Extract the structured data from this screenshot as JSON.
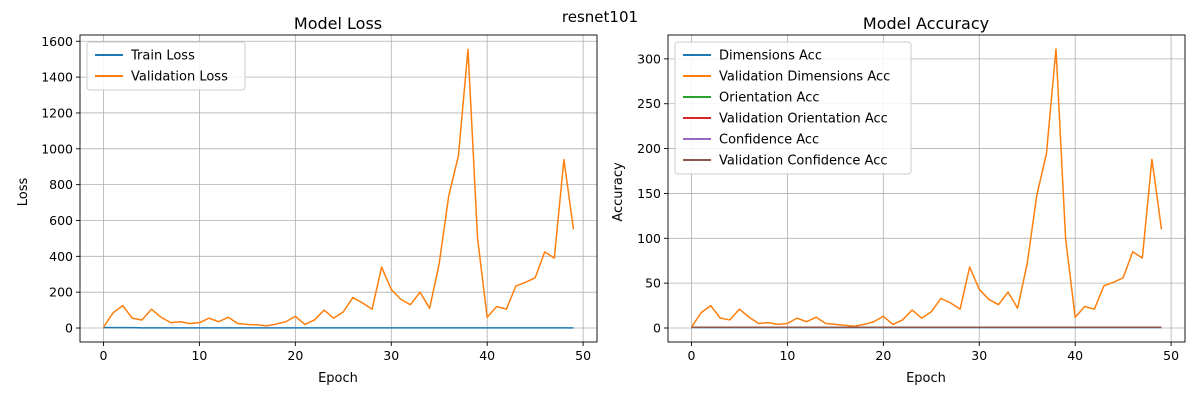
{
  "figure": {
    "suptitle": "resnet101"
  },
  "chart_data": [
    {
      "type": "line",
      "title": "Model Loss",
      "xlabel": "Epoch",
      "ylabel": "Loss",
      "xlim": [
        -2.45,
        51.45
      ],
      "ylim": [
        -78,
        1635
      ],
      "xticks": [
        0,
        10,
        20,
        30,
        40,
        50
      ],
      "yticks": [
        0,
        200,
        400,
        600,
        800,
        1000,
        1200,
        1400,
        1600
      ],
      "grid": true,
      "legend_position": "top-left",
      "series": [
        {
          "name": "Train Loss",
          "color": "#1f77b4",
          "x": [
            0,
            1,
            2,
            3,
            4,
            5,
            6,
            7,
            8,
            9,
            10,
            11,
            12,
            13,
            14,
            15,
            16,
            17,
            18,
            19,
            20,
            21,
            22,
            23,
            24,
            25,
            26,
            27,
            28,
            29,
            30,
            31,
            32,
            33,
            34,
            35,
            36,
            37,
            38,
            39,
            40,
            41,
            42,
            43,
            44,
            45,
            46,
            47,
            48,
            49
          ],
          "y": [
            3,
            2,
            2,
            2,
            1,
            1,
            1,
            1,
            1,
            1,
            1,
            1,
            1,
            1,
            1,
            1,
            1,
            1,
            1,
            1,
            1,
            1,
            1,
            1,
            1,
            1,
            1,
            1,
            1,
            1,
            1,
            1,
            1,
            1,
            1,
            1,
            1,
            1,
            1,
            1,
            1,
            1,
            1,
            1,
            1,
            1,
            1,
            1,
            1,
            1
          ]
        },
        {
          "name": "Validation Loss",
          "color": "#ff7f0e",
          "x": [
            0,
            1,
            2,
            3,
            4,
            5,
            6,
            7,
            8,
            9,
            10,
            11,
            12,
            13,
            14,
            15,
            16,
            17,
            18,
            19,
            20,
            21,
            22,
            23,
            24,
            25,
            26,
            27,
            28,
            29,
            30,
            31,
            32,
            33,
            34,
            35,
            36,
            37,
            38,
            39,
            40,
            41,
            42,
            43,
            44,
            45,
            46,
            47,
            48,
            49
          ],
          "y": [
            5,
            85,
            125,
            55,
            45,
            105,
            60,
            30,
            35,
            25,
            30,
            55,
            35,
            60,
            25,
            20,
            18,
            12,
            22,
            35,
            65,
            20,
            45,
            100,
            55,
            90,
            170,
            140,
            105,
            340,
            215,
            160,
            130,
            200,
            110,
            360,
            740,
            960,
            1555,
            500,
            60,
            120,
            105,
            235,
            255,
            280,
            425,
            390,
            940,
            550
          ]
        }
      ]
    },
    {
      "type": "line",
      "title": "Model Accuracy",
      "xlabel": "Epoch",
      "ylabel": "Accuracy",
      "xlim": [
        -2.45,
        51.45
      ],
      "ylim": [
        -15.6,
        326.6
      ],
      "xticks": [
        0,
        10,
        20,
        30,
        40,
        50
      ],
      "yticks": [
        0,
        50,
        100,
        150,
        200,
        250,
        300
      ],
      "grid": true,
      "legend_position": "top-left",
      "series": [
        {
          "name": "Dimensions Acc",
          "color": "#1f77b4",
          "x": [
            0,
            1,
            2,
            3,
            4,
            5,
            6,
            7,
            8,
            9,
            10,
            11,
            12,
            13,
            14,
            15,
            16,
            17,
            18,
            19,
            20,
            21,
            22,
            23,
            24,
            25,
            26,
            27,
            28,
            29,
            30,
            31,
            32,
            33,
            34,
            35,
            36,
            37,
            38,
            39,
            40,
            41,
            42,
            43,
            44,
            45,
            46,
            47,
            48,
            49
          ],
          "y": [
            0.5,
            0.5,
            0.5,
            0.5,
            0.5,
            0.5,
            0.5,
            0.5,
            0.5,
            0.5,
            0.5,
            0.5,
            0.5,
            0.5,
            0.5,
            0.5,
            0.5,
            0.5,
            0.5,
            0.5,
            0.5,
            0.5,
            0.5,
            0.5,
            0.5,
            0.5,
            0.5,
            0.5,
            0.5,
            0.5,
            0.5,
            0.5,
            0.5,
            0.5,
            0.5,
            0.5,
            0.5,
            0.5,
            0.5,
            0.5,
            0.5,
            0.5,
            0.5,
            0.5,
            0.5,
            0.5,
            0.5,
            0.5,
            0.5,
            0.5
          ]
        },
        {
          "name": "Validation Dimensions Acc",
          "color": "#ff7f0e",
          "x": [
            0,
            1,
            2,
            3,
            4,
            5,
            6,
            7,
            8,
            9,
            10,
            11,
            12,
            13,
            14,
            15,
            16,
            17,
            18,
            19,
            20,
            21,
            22,
            23,
            24,
            25,
            26,
            27,
            28,
            29,
            30,
            31,
            32,
            33,
            34,
            35,
            36,
            37,
            38,
            39,
            40,
            41,
            42,
            43,
            44,
            45,
            46,
            47,
            48,
            49
          ],
          "y": [
            1,
            17,
            25,
            11,
            9,
            21,
            12,
            5,
            6,
            4,
            5,
            11,
            7,
            12,
            5,
            4,
            3,
            2,
            4,
            7,
            13,
            4,
            9,
            20,
            11,
            18,
            33,
            28,
            21,
            68,
            43,
            32,
            26,
            40,
            22,
            72,
            148,
            194,
            311,
            100,
            12,
            24,
            21,
            47,
            51,
            56,
            85,
            78,
            188,
            110
          ]
        },
        {
          "name": "Orientation Acc",
          "color": "#2ca02c",
          "x": [
            0,
            49
          ],
          "y": [
            0.8,
            0.8
          ]
        },
        {
          "name": "Validation Orientation Acc",
          "color": "#d62728",
          "x": [
            0,
            49
          ],
          "y": [
            0.8,
            0.8
          ]
        },
        {
          "name": "Confidence Acc",
          "color": "#9467bd",
          "x": [
            0,
            49
          ],
          "y": [
            0.8,
            0.8
          ]
        },
        {
          "name": "Validation Confidence Acc",
          "color": "#8c564b",
          "x": [
            0,
            49
          ],
          "y": [
            0.8,
            0.8
          ]
        }
      ]
    }
  ]
}
